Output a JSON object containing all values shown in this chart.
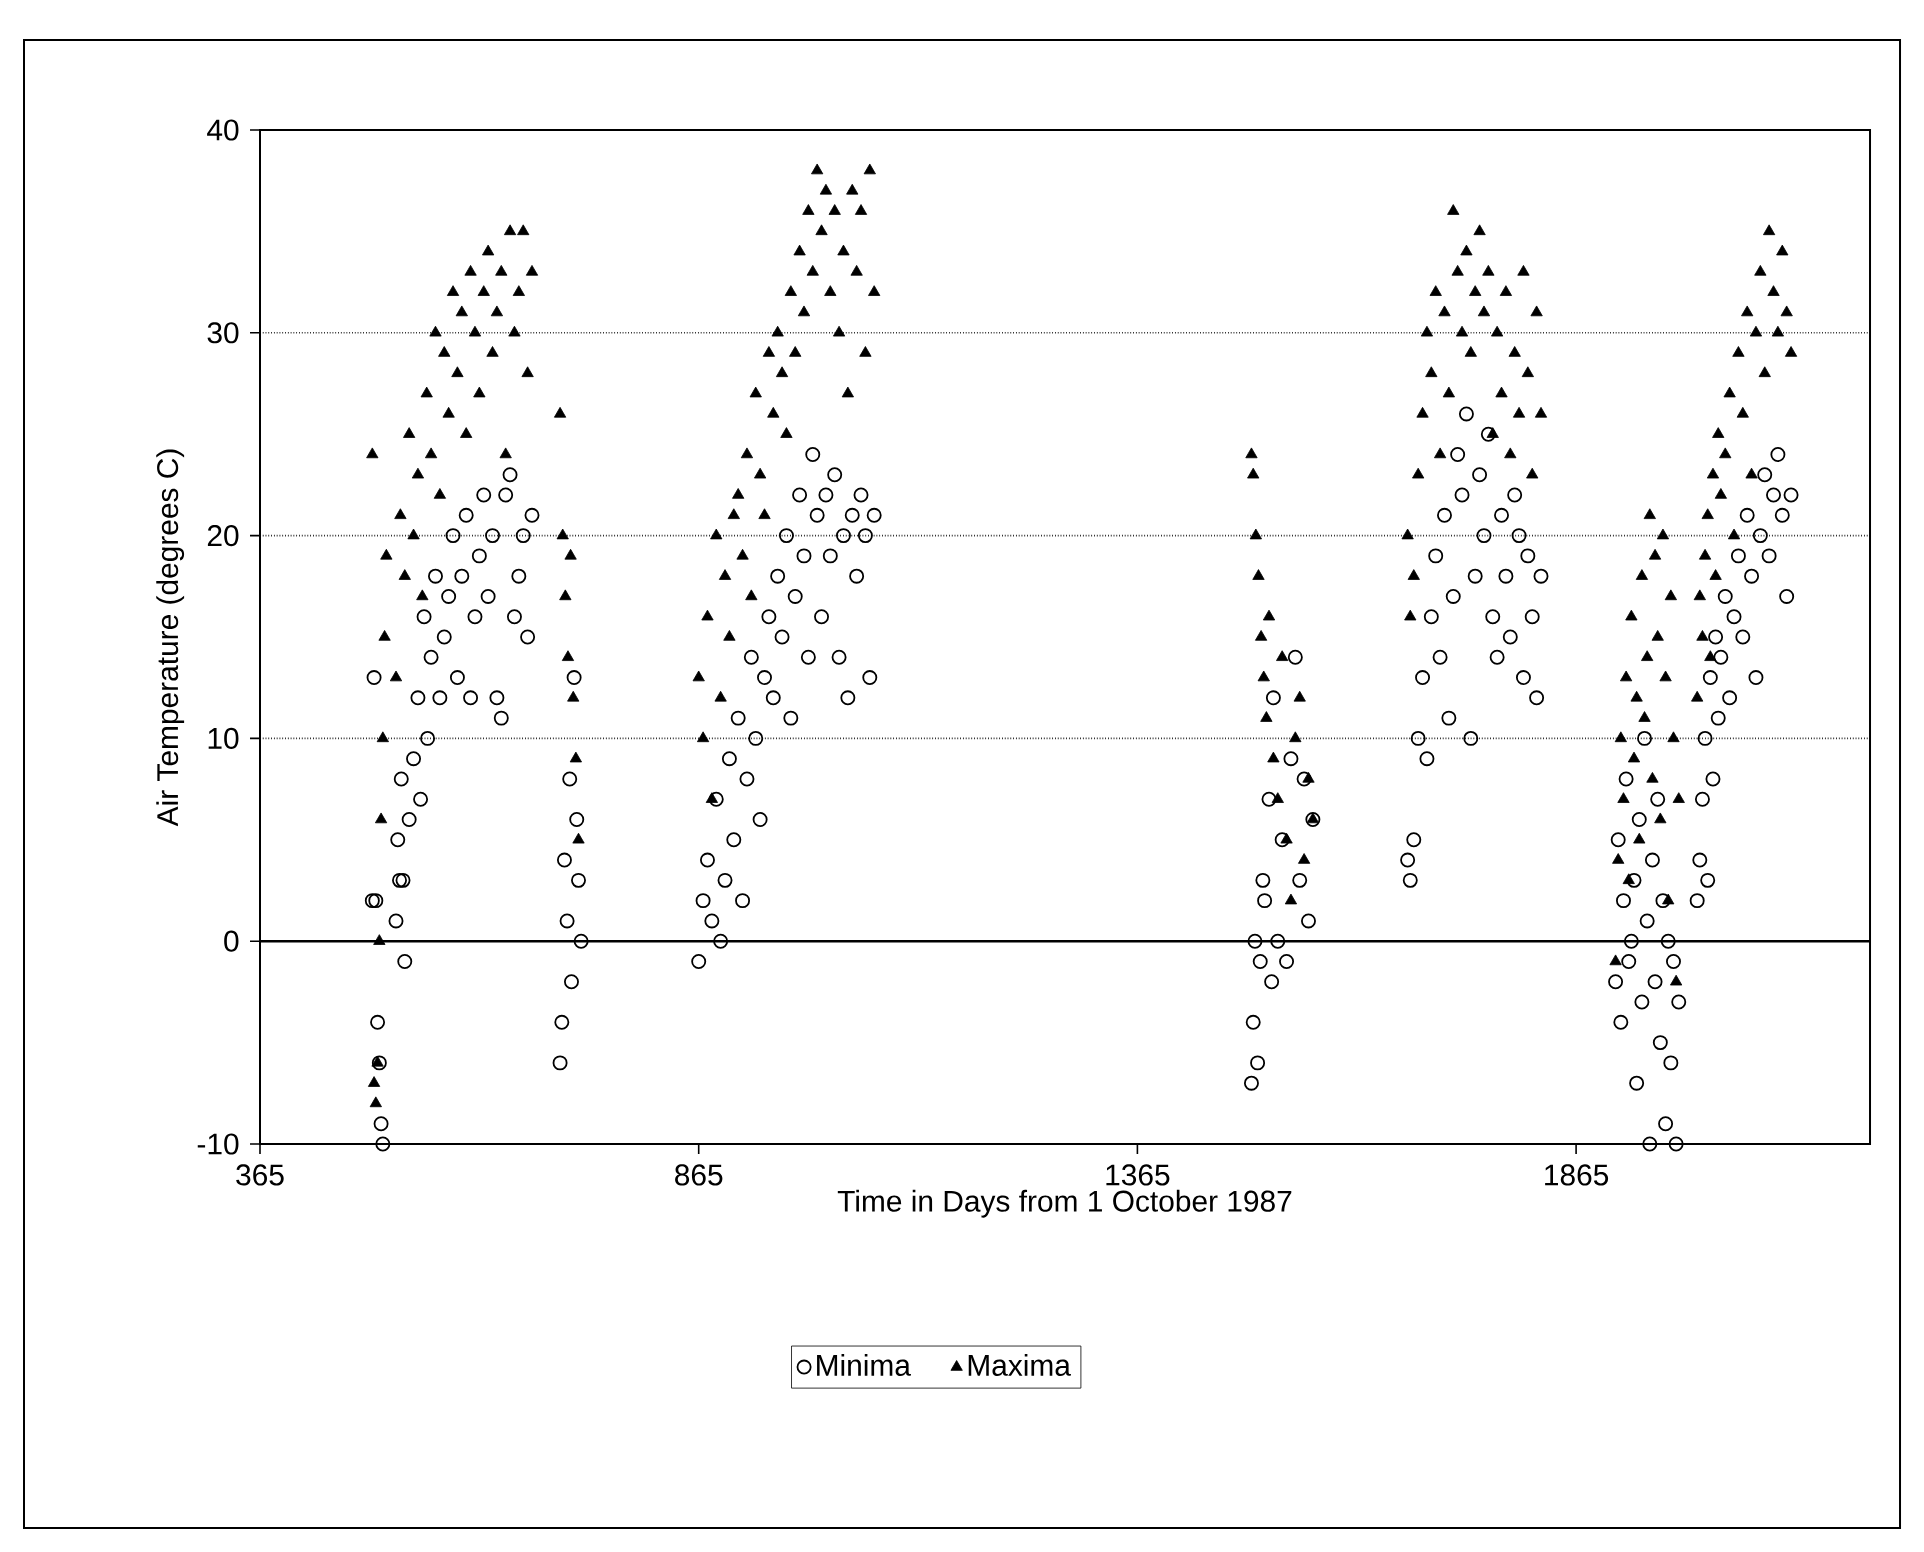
{
  "chart_data": {
    "type": "scatter",
    "xlabel": "Time in Days from 1 October 1987",
    "ylabel": "Air Temperature (degrees C)",
    "xlim": [
      365,
      2200
    ],
    "xticks": [
      365,
      865,
      1365,
      1865
    ],
    "ylim": [
      -10,
      40
    ],
    "yticks": [
      -10,
      0,
      10,
      20,
      30,
      40
    ],
    "grid": "y",
    "legend": "bottom",
    "ref_lines": [
      {
        "axis": "y",
        "value": 0,
        "line_style": "solid"
      }
    ],
    "series": [
      {
        "name": "Minima",
        "color": "#000000",
        "marker": "circle",
        "x": [
          493,
          495,
          497,
          499,
          501,
          503,
          505,
          520,
          522,
          524,
          526,
          528,
          530,
          535,
          540,
          545,
          548,
          552,
          556,
          560,
          565,
          570,
          575,
          580,
          585,
          590,
          595,
          600,
          605,
          610,
          615,
          620,
          625,
          630,
          635,
          640,
          645,
          650,
          655,
          660,
          665,
          670,
          675,
          707,
          709,
          712,
          715,
          718,
          720,
          723,
          726,
          728,
          731,
          865,
          870,
          875,
          880,
          885,
          890,
          895,
          900,
          905,
          910,
          915,
          920,
          925,
          930,
          935,
          940,
          945,
          950,
          955,
          960,
          965,
          970,
          975,
          980,
          985,
          990,
          995,
          1000,
          1005,
          1010,
          1015,
          1020,
          1025,
          1030,
          1035,
          1040,
          1045,
          1050,
          1055,
          1060,
          1065,
          1495,
          1497,
          1499,
          1502,
          1505,
          1508,
          1510,
          1515,
          1518,
          1520,
          1525,
          1530,
          1535,
          1540,
          1545,
          1550,
          1555,
          1560,
          1565,
          1673,
          1676,
          1680,
          1685,
          1690,
          1695,
          1700,
          1705,
          1710,
          1715,
          1720,
          1725,
          1730,
          1735,
          1740,
          1745,
          1750,
          1755,
          1760,
          1765,
          1770,
          1775,
          1780,
          1785,
          1790,
          1795,
          1800,
          1805,
          1810,
          1815,
          1820,
          1825,
          1910,
          1913,
          1916,
          1919,
          1922,
          1925,
          1928,
          1931,
          1934,
          1937,
          1940,
          1943,
          1946,
          1949,
          1952,
          1955,
          1958,
          1961,
          1964,
          1967,
          1970,
          1973,
          1976,
          1979,
          1982,
          2003,
          2006,
          2009,
          2012,
          2015,
          2018,
          2021,
          2024,
          2027,
          2030,
          2035,
          2040,
          2045,
          2050,
          2055,
          2060,
          2065,
          2070,
          2075,
          2080,
          2085,
          2090,
          2095,
          2100,
          2105,
          2110
        ],
        "values": [
          2,
          13,
          2,
          -4,
          -6,
          -9,
          -10,
          1,
          5,
          3,
          8,
          3,
          -1,
          6,
          9,
          12,
          7,
          16,
          10,
          14,
          18,
          12,
          15,
          17,
          20,
          13,
          18,
          21,
          12,
          16,
          19,
          22,
          17,
          20,
          12,
          11,
          22,
          23,
          16,
          18,
          20,
          15,
          21,
          -6,
          -4,
          4,
          1,
          8,
          -2,
          13,
          6,
          3,
          0,
          -1,
          2,
          4,
          1,
          7,
          0,
          3,
          9,
          5,
          11,
          2,
          8,
          14,
          10,
          6,
          13,
          16,
          12,
          18,
          15,
          20,
          11,
          17,
          22,
          19,
          14,
          24,
          21,
          16,
          22,
          19,
          23,
          14,
          20,
          12,
          21,
          18,
          22,
          20,
          13,
          21,
          -7,
          -4,
          0,
          -6,
          -1,
          3,
          2,
          7,
          -2,
          12,
          0,
          5,
          -1,
          9,
          14,
          3,
          8,
          1,
          6,
          4,
          3,
          5,
          10,
          13,
          9,
          16,
          19,
          14,
          21,
          11,
          17,
          24,
          22,
          26,
          10,
          18,
          23,
          20,
          25,
          16,
          14,
          21,
          18,
          15,
          22,
          20,
          13,
          19,
          16,
          12,
          18,
          -2,
          5,
          -4,
          2,
          8,
          -1,
          0,
          3,
          -7,
          6,
          -3,
          10,
          1,
          -10,
          4,
          -2,
          7,
          -5,
          2,
          -9,
          0,
          -6,
          -1,
          -10,
          -3,
          2,
          4,
          7,
          10,
          3,
          13,
          8,
          15,
          11,
          14,
          17,
          12,
          16,
          19,
          15,
          21,
          18,
          13,
          20,
          23,
          19,
          22,
          24,
          21,
          17,
          22
        ]
      },
      {
        "name": "Maxima",
        "color": "#000000",
        "marker": "triangle",
        "x": [
          493,
          495,
          497,
          499,
          501,
          503,
          505,
          507,
          509,
          520,
          525,
          530,
          535,
          540,
          545,
          550,
          555,
          560,
          565,
          570,
          575,
          580,
          585,
          590,
          595,
          600,
          605,
          610,
          615,
          620,
          625,
          630,
          635,
          640,
          645,
          650,
          655,
          660,
          665,
          670,
          675,
          707,
          710,
          713,
          716,
          719,
          722,
          725,
          728,
          865,
          870,
          875,
          880,
          885,
          890,
          895,
          900,
          905,
          910,
          915,
          920,
          925,
          930,
          935,
          940,
          945,
          950,
          955,
          960,
          965,
          970,
          975,
          980,
          985,
          990,
          995,
          1000,
          1005,
          1010,
          1015,
          1020,
          1025,
          1030,
          1035,
          1040,
          1045,
          1050,
          1055,
          1060,
          1065,
          1495,
          1497,
          1500,
          1503,
          1506,
          1509,
          1512,
          1515,
          1520,
          1525,
          1530,
          1535,
          1540,
          1545,
          1550,
          1555,
          1560,
          1565,
          1673,
          1676,
          1680,
          1685,
          1690,
          1695,
          1700,
          1705,
          1710,
          1715,
          1720,
          1725,
          1730,
          1735,
          1740,
          1745,
          1750,
          1755,
          1760,
          1765,
          1770,
          1775,
          1780,
          1785,
          1790,
          1795,
          1800,
          1805,
          1810,
          1815,
          1820,
          1825,
          1910,
          1913,
          1916,
          1919,
          1922,
          1925,
          1928,
          1931,
          1934,
          1937,
          1940,
          1943,
          1946,
          1949,
          1952,
          1955,
          1958,
          1961,
          1964,
          1967,
          1970,
          1973,
          1976,
          1979,
          1982,
          2003,
          2006,
          2009,
          2012,
          2015,
          2018,
          2021,
          2024,
          2027,
          2030,
          2035,
          2040,
          2045,
          2050,
          2055,
          2060,
          2065,
          2070,
          2075,
          2080,
          2085,
          2090,
          2095,
          2100,
          2105,
          2110
        ],
        "values": [
          24,
          -7,
          -8,
          -6,
          0,
          6,
          10,
          15,
          19,
          13,
          21,
          18,
          25,
          20,
          23,
          17,
          27,
          24,
          30,
          22,
          29,
          26,
          32,
          28,
          31,
          25,
          33,
          30,
          27,
          32,
          34,
          29,
          31,
          33,
          24,
          35,
          30,
          32,
          35,
          28,
          33,
          26,
          20,
          17,
          14,
          19,
          12,
          9,
          5,
          13,
          10,
          16,
          7,
          20,
          12,
          18,
          15,
          21,
          22,
          19,
          24,
          17,
          27,
          23,
          21,
          29,
          26,
          30,
          28,
          25,
          32,
          29,
          34,
          31,
          36,
          33,
          38,
          35,
          37,
          32,
          36,
          30,
          34,
          27,
          37,
          33,
          36,
          29,
          38,
          32,
          24,
          23,
          20,
          18,
          15,
          13,
          11,
          16,
          9,
          7,
          14,
          5,
          2,
          10,
          12,
          4,
          8,
          6,
          20,
          16,
          18,
          23,
          26,
          30,
          28,
          32,
          24,
          31,
          27,
          36,
          33,
          30,
          34,
          29,
          32,
          35,
          31,
          33,
          25,
          30,
          27,
          32,
          24,
          29,
          26,
          33,
          28,
          23,
          31,
          26,
          -1,
          4,
          10,
          7,
          13,
          3,
          16,
          9,
          12,
          5,
          18,
          11,
          14,
          21,
          8,
          19,
          15,
          6,
          20,
          13,
          2,
          17,
          10,
          -2,
          7,
          12,
          17,
          15,
          19,
          21,
          14,
          23,
          18,
          25,
          22,
          24,
          27,
          20,
          29,
          26,
          31,
          23,
          30,
          33,
          28,
          35,
          32,
          30,
          34,
          31,
          29
        ]
      }
    ]
  }
}
